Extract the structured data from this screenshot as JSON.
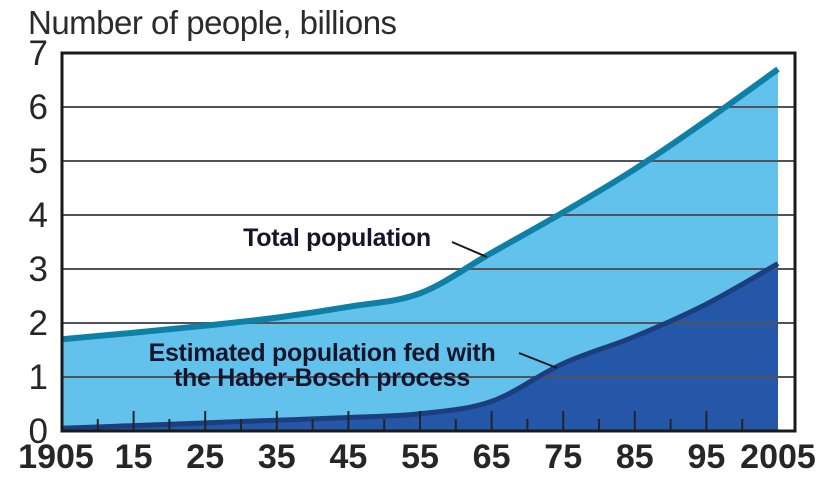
{
  "title": "Number of people, billions",
  "colors": {
    "background": "#ffffff",
    "total_fill": "#63c2ec",
    "total_stroke": "#0e80a6",
    "haber_fill": "#2457a7",
    "haber_stroke": "#1d3e7d",
    "grid": "#52525c",
    "frame": "#1a1a1a",
    "tick": "#20242e",
    "axis_text": "#262626",
    "annotation_text": "#15152b",
    "leader_line": "#1a1a1a"
  },
  "chart_data": {
    "type": "area",
    "title": "Number of people, billions",
    "x": [
      1905,
      1915,
      1925,
      1935,
      1945,
      1955,
      1965,
      1975,
      1985,
      1995,
      2005
    ],
    "series": [
      {
        "name": "Total population",
        "values": [
          1.7,
          1.82,
          1.95,
          2.1,
          2.3,
          2.55,
          3.3,
          4.05,
          4.85,
          5.75,
          6.7
        ]
      },
      {
        "name": "Estimated population fed with the Haber-Bosch process",
        "values": [
          0.05,
          0.1,
          0.15,
          0.2,
          0.25,
          0.32,
          0.55,
          1.25,
          1.75,
          2.35,
          3.1
        ]
      }
    ],
    "xlim": [
      1905,
      2005
    ],
    "ylim": [
      0,
      7
    ],
    "yticks": [
      0,
      1,
      2,
      3,
      4,
      5,
      6,
      7
    ],
    "xtick_labels": [
      "1905",
      "15",
      "25",
      "35",
      "45",
      "55",
      "65",
      "75",
      "85",
      "95",
      "2005"
    ],
    "minor_xticks_every_years": 5,
    "grid": true,
    "legend_position": "inline-annotations"
  },
  "annotations": {
    "total": {
      "text": "Total population",
      "leader": [
        452,
        242,
        487,
        257
      ]
    },
    "haber_line1": {
      "text": "Estimated population fed with",
      "leader": [
        519,
        353,
        557,
        368
      ]
    },
    "haber_line2": {
      "text": "the Haber-Bosch process"
    }
  }
}
